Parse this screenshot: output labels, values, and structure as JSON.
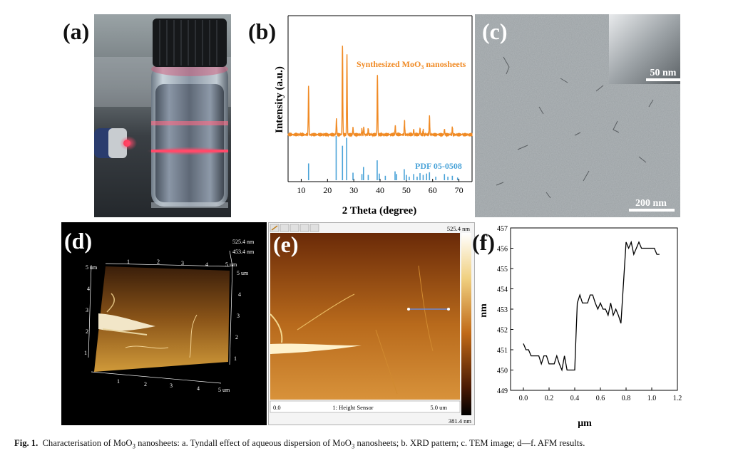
{
  "panels": {
    "a": {
      "label": "(a)"
    },
    "b": {
      "label": "(b)"
    },
    "c": {
      "label": "(c)",
      "inset_scale": "50 nm",
      "scale": "200 nm"
    },
    "d": {
      "label": "(d)",
      "top_value": "525.4 nm",
      "second_value": "453.4 nm",
      "left_axis_top": "5 um",
      "right_axis_top": "5 um",
      "left_ticks": [
        "4",
        "3",
        "2",
        "1"
      ],
      "top_ticks": [
        "1",
        "2",
        "3",
        "4"
      ],
      "right_ticks": [
        "4",
        "3",
        "2",
        "1"
      ],
      "bottom_ticks": [
        "1",
        "2",
        "3",
        "4",
        "5 um"
      ],
      "extra_right": "5 um"
    },
    "e": {
      "label": "(e)",
      "color_max": "525.4 nm",
      "color_min": "381.4 nm",
      "axis_start": "0.0",
      "sensor_label": "1: Height Sensor",
      "axis_end": "5.0 um"
    },
    "f": {
      "label": "(f)"
    }
  },
  "caption": {
    "prefix": "Fig. 1.",
    "text_a": "Characterisation of MoO",
    "sub_a": "3",
    "text_b": " nanosheets: a. Tyndall effect of aqueous dispersion of MoO",
    "sub_b": "3",
    "text_c": " nanosheets; b. XRD pattern; c. TEM image; d—f. AFM results."
  },
  "chart_data": [
    {
      "type": "line",
      "panel": "b",
      "xlabel": "2 Theta (degree)",
      "ylabel": "Intensity (a.u.)",
      "xlim": [
        5,
        75
      ],
      "xticks": [
        10,
        20,
        30,
        40,
        50,
        60,
        70
      ],
      "series": [
        {
          "name": "Synthesized MoO3 nanosheets",
          "color": "#f08a24",
          "peaks": [
            {
              "x": 12.8,
              "h": 0.55
            },
            {
              "x": 23.4,
              "h": 0.17
            },
            {
              "x": 25.7,
              "h": 1.0
            },
            {
              "x": 27.4,
              "h": 0.9
            },
            {
              "x": 29.7,
              "h": 0.08
            },
            {
              "x": 33.1,
              "h": 0.06
            },
            {
              "x": 33.8,
              "h": 0.08
            },
            {
              "x": 35.5,
              "h": 0.06
            },
            {
              "x": 39.0,
              "h": 0.66
            },
            {
              "x": 45.8,
              "h": 0.1
            },
            {
              "x": 49.3,
              "h": 0.15
            },
            {
              "x": 52.8,
              "h": 0.06
            },
            {
              "x": 55.2,
              "h": 0.07
            },
            {
              "x": 56.4,
              "h": 0.05
            },
            {
              "x": 58.8,
              "h": 0.2
            },
            {
              "x": 64.5,
              "h": 0.06
            },
            {
              "x": 67.5,
              "h": 0.08
            }
          ]
        },
        {
          "name": "PDF 05-0508",
          "color": "#4aa3d8",
          "peaks": [
            {
              "x": 12.8,
              "h": 0.38
            },
            {
              "x": 23.3,
              "h": 1.0
            },
            {
              "x": 25.7,
              "h": 0.78
            },
            {
              "x": 27.3,
              "h": 0.96
            },
            {
              "x": 29.7,
              "h": 0.17
            },
            {
              "x": 33.1,
              "h": 0.14
            },
            {
              "x": 33.7,
              "h": 0.3
            },
            {
              "x": 35.5,
              "h": 0.12
            },
            {
              "x": 38.9,
              "h": 0.45
            },
            {
              "x": 39.7,
              "h": 0.15
            },
            {
              "x": 42.0,
              "h": 0.1
            },
            {
              "x": 45.7,
              "h": 0.2
            },
            {
              "x": 46.3,
              "h": 0.14
            },
            {
              "x": 49.2,
              "h": 0.25
            },
            {
              "x": 50.0,
              "h": 0.12
            },
            {
              "x": 51.1,
              "h": 0.08
            },
            {
              "x": 52.8,
              "h": 0.14
            },
            {
              "x": 54.1,
              "h": 0.08
            },
            {
              "x": 55.2,
              "h": 0.16
            },
            {
              "x": 56.4,
              "h": 0.12
            },
            {
              "x": 57.7,
              "h": 0.15
            },
            {
              "x": 58.8,
              "h": 0.18
            },
            {
              "x": 61.2,
              "h": 0.08
            },
            {
              "x": 64.5,
              "h": 0.14
            },
            {
              "x": 65.8,
              "h": 0.08
            },
            {
              "x": 67.5,
              "h": 0.1
            },
            {
              "x": 69.5,
              "h": 0.06
            }
          ]
        }
      ],
      "labels": [
        {
          "text": "Synthesized MoO",
          "sub": "3",
          "tail": " nanosheets",
          "color": "#f08a24"
        },
        {
          "text": "PDF 05-0508",
          "color": "#4aa3d8"
        }
      ]
    },
    {
      "type": "line",
      "panel": "f",
      "xlabel": "μm",
      "ylabel": "nm",
      "xlim": [
        -0.1,
        1.2
      ],
      "ylim": [
        449,
        457
      ],
      "xticks": [
        0.0,
        0.2,
        0.4,
        0.6,
        0.8,
        1.0,
        1.2
      ],
      "xtick_labels": [
        "0.0",
        "0.2",
        "0.4",
        "0.6",
        "0.8",
        "1.0",
        "1.2"
      ],
      "yticks": [
        449,
        450,
        451,
        452,
        453,
        454,
        455,
        456,
        457
      ],
      "series": [
        {
          "name": "",
          "x": [
            0.0,
            0.02,
            0.04,
            0.06,
            0.08,
            0.1,
            0.12,
            0.14,
            0.16,
            0.18,
            0.2,
            0.22,
            0.24,
            0.26,
            0.28,
            0.3,
            0.32,
            0.34,
            0.36,
            0.38,
            0.4,
            0.41,
            0.42,
            0.44,
            0.46,
            0.48,
            0.5,
            0.52,
            0.54,
            0.56,
            0.58,
            0.6,
            0.62,
            0.64,
            0.66,
            0.68,
            0.7,
            0.72,
            0.74,
            0.76,
            0.78,
            0.8,
            0.82,
            0.84,
            0.86,
            0.88,
            0.9,
            0.92,
            0.94,
            0.96,
            0.98,
            1.0,
            1.02,
            1.04,
            1.06
          ],
          "y": [
            451.3,
            451.0,
            451.0,
            450.7,
            450.7,
            450.7,
            450.7,
            450.3,
            450.7,
            450.7,
            450.3,
            450.3,
            450.3,
            450.7,
            450.3,
            450.0,
            450.7,
            450.0,
            450.0,
            450.0,
            450.0,
            451.7,
            453.3,
            453.7,
            453.3,
            453.3,
            453.3,
            453.7,
            453.7,
            453.3,
            453.0,
            453.3,
            453.0,
            453.0,
            452.7,
            453.3,
            452.7,
            453.0,
            452.7,
            452.3,
            454.3,
            456.3,
            456.0,
            456.3,
            455.7,
            456.0,
            456.3,
            456.0,
            456.0,
            456.0,
            456.0,
            456.0,
            456.0,
            455.7,
            455.7
          ]
        }
      ]
    }
  ]
}
